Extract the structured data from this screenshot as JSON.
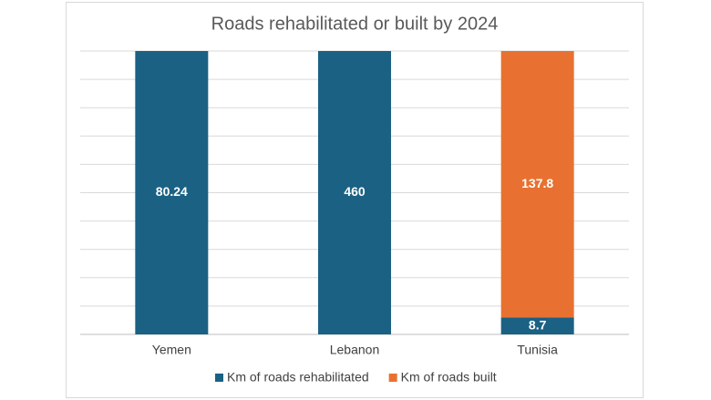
{
  "chart_data": {
    "type": "bar",
    "stacking": "percent",
    "title": "Roads rehabilitated or built by 2024",
    "categories": [
      "Yemen",
      "Lebanon",
      "Tunisia"
    ],
    "series": [
      {
        "name": "Km of roads rehabilitated",
        "color": "#1a6184",
        "values": [
          80.24,
          460,
          8.7
        ]
      },
      {
        "name": "Km of roads built",
        "color": "#e87131",
        "values": [
          null,
          null,
          137.8
        ]
      }
    ],
    "ylim": [
      0,
      100
    ],
    "yticks": [
      0,
      10,
      20,
      30,
      40,
      50,
      60,
      70,
      80,
      90,
      100
    ],
    "grid": true,
    "legend": "bottom"
  }
}
